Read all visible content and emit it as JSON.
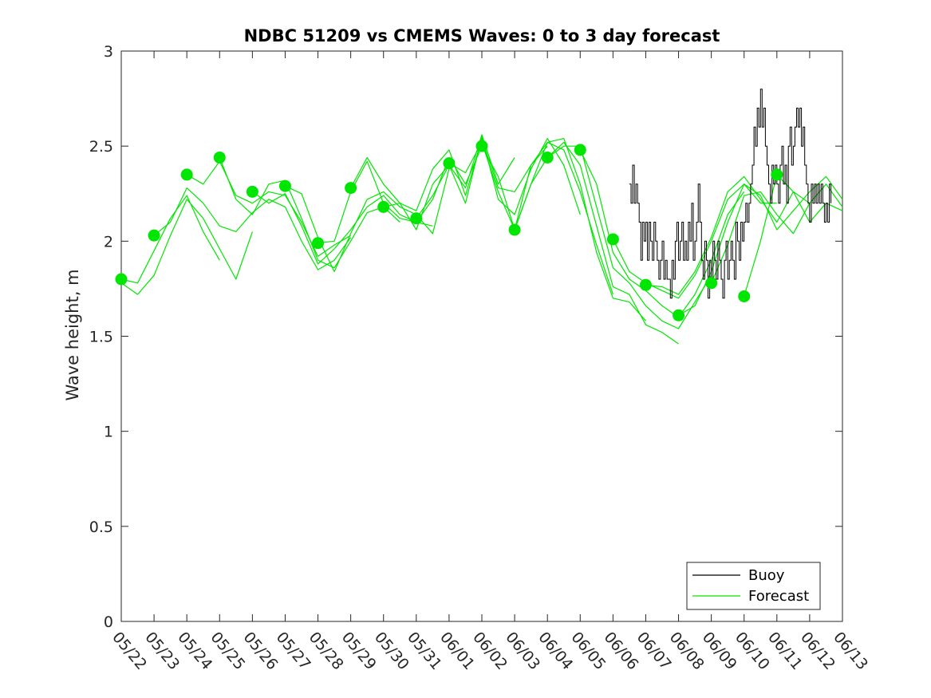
{
  "chart_data": {
    "type": "line",
    "title": "NDBC 51209 vs CMEMS Waves: 0 to 3 day forecast",
    "xlabel": "",
    "ylabel": "Wave height, m",
    "ylim": [
      0,
      3
    ],
    "yticks": [
      "0",
      "0.5",
      "1",
      "1.5",
      "2",
      "2.5",
      "3"
    ],
    "xlim": [
      "05/22",
      "06/13"
    ],
    "xticks": [
      "05/22",
      "05/23",
      "05/24",
      "05/25",
      "05/26",
      "05/27",
      "05/28",
      "05/29",
      "05/30",
      "05/31",
      "06/01",
      "06/02",
      "06/03",
      "06/04",
      "06/05",
      "06/06",
      "06/07",
      "06/08",
      "06/09",
      "06/10",
      "06/11",
      "06/12",
      "06/13"
    ],
    "grid": false,
    "legend": {
      "placement": "bottom-right",
      "entries": [
        "Buoy",
        "Forecast"
      ]
    },
    "colors": {
      "buoy": "#000000",
      "forecast": "#00e600",
      "axis": "#262626"
    },
    "series": [
      {
        "name": "Buoy",
        "style": "line",
        "x": [
          15.5,
          15.55,
          15.6,
          15.65,
          15.7,
          15.75,
          15.8,
          15.85,
          15.9,
          15.95,
          16.0,
          16.05,
          16.1,
          16.15,
          16.2,
          16.25,
          16.3,
          16.35,
          16.4,
          16.45,
          16.5,
          16.55,
          16.6,
          16.65,
          16.7,
          16.75,
          16.8,
          16.85,
          16.9,
          16.95,
          17.0,
          17.05,
          17.1,
          17.15,
          17.2,
          17.25,
          17.3,
          17.35,
          17.4,
          17.45,
          17.5,
          17.55,
          17.6,
          17.65,
          17.7,
          17.75,
          17.8,
          17.85,
          17.9,
          17.95,
          18.0,
          18.05,
          18.1,
          18.15,
          18.2,
          18.25,
          18.3,
          18.35,
          18.4,
          18.45,
          18.5,
          18.55,
          18.6,
          18.65,
          18.7,
          18.75,
          18.8,
          18.85,
          18.9,
          18.95,
          19.0,
          19.05,
          19.1,
          19.15,
          19.2,
          19.25,
          19.3,
          19.35,
          19.4,
          19.45,
          19.5,
          19.55,
          19.6,
          19.65,
          19.7,
          19.75,
          19.8,
          19.85,
          19.9,
          19.95,
          20.0,
          20.05,
          20.1,
          20.15,
          20.2,
          20.25,
          20.3,
          20.35,
          20.4,
          20.45,
          20.5,
          20.55,
          20.6,
          20.65,
          20.7,
          20.75,
          20.8,
          20.85,
          20.9,
          20.95,
          21.0,
          21.05,
          21.1,
          21.15,
          21.2,
          21.25,
          21.3,
          21.35,
          21.4,
          21.45,
          21.5,
          21.55,
          21.6,
          21.65
        ],
        "y": [
          2.3,
          2.2,
          2.4,
          2.2,
          2.3,
          2.2,
          2.1,
          1.9,
          2.1,
          2.0,
          2.1,
          1.9,
          2.1,
          2.0,
          1.9,
          2.1,
          2.0,
          1.9,
          1.8,
          1.9,
          2.0,
          1.8,
          1.9,
          1.8,
          1.8,
          1.7,
          1.9,
          1.8,
          2.0,
          2.1,
          1.9,
          2.0,
          2.1,
          1.9,
          2.0,
          1.9,
          2.1,
          2.0,
          2.2,
          1.9,
          2.0,
          2.1,
          2.3,
          2.1,
          1.9,
          1.8,
          2.0,
          1.9,
          1.7,
          1.9,
          1.8,
          2.0,
          1.9,
          1.8,
          2.0,
          1.9,
          1.8,
          1.7,
          1.9,
          2.0,
          1.8,
          1.9,
          2.0,
          1.9,
          1.8,
          2.1,
          2.0,
          1.9,
          2.1,
          2.0,
          2.1,
          2.2,
          2.1,
          2.2,
          2.3,
          2.4,
          2.6,
          2.5,
          2.7,
          2.6,
          2.8,
          2.6,
          2.7,
          2.5,
          2.4,
          2.3,
          2.2,
          2.4,
          2.3,
          2.4,
          2.3,
          2.2,
          2.4,
          2.5,
          2.3,
          2.4,
          2.2,
          2.5,
          2.6,
          2.4,
          2.5,
          2.6,
          2.7,
          2.6,
          2.7,
          2.5,
          2.6,
          2.4,
          2.3,
          2.2,
          2.1,
          2.3,
          2.2,
          2.3,
          2.2,
          2.3,
          2.2,
          2.3,
          2.2,
          2.1,
          2.2,
          2.1,
          2.3,
          2.2
        ]
      },
      {
        "name": "Forecast",
        "style": "lines",
        "runs": [
          {
            "x": [
              0,
              0.5,
              1,
              1.5,
              2,
              2.5,
              3
            ],
            "y": [
              1.8,
              1.78,
              1.95,
              2.12,
              2.24,
              2.05,
              1.9
            ]
          },
          {
            "x": [
              0,
              0.25,
              0.5,
              1,
              1.5,
              2,
              2.5,
              3,
              3.5,
              4
            ],
            "y": [
              1.78,
              1.75,
              1.72,
              1.82,
              2.03,
              2.22,
              2.12,
              1.96,
              1.8,
              2.05
            ]
          },
          {
            "x": [
              1,
              1.5,
              2,
              2.5,
              3,
              3.5,
              4,
              4.5,
              5,
              5.5,
              6,
              6.5,
              7
            ],
            "y": [
              2.03,
              2.1,
              2.28,
              2.2,
              2.08,
              2.05,
              2.15,
              2.22,
              2.18,
              2.0,
              1.85,
              1.9,
              2.02
            ]
          },
          {
            "x": [
              2,
              2.5,
              3,
              3.5,
              4,
              4.5,
              5,
              5.5,
              6,
              6.5,
              7
            ],
            "y": [
              2.35,
              2.3,
              2.42,
              2.24,
              2.2,
              2.26,
              2.24,
              2.1,
              1.92,
              1.98,
              2.03
            ]
          },
          {
            "x": [
              3,
              3.5,
              4,
              4.5,
              5,
              5.5,
              6,
              6.5,
              7,
              7.5,
              8,
              8.5
            ],
            "y": [
              2.44,
              2.22,
              2.14,
              2.3,
              2.32,
              2.12,
              1.9,
              1.86,
              2.0,
              2.15,
              2.18,
              2.1
            ]
          },
          {
            "x": [
              4,
              4.5,
              5,
              5.5,
              6,
              6.5,
              7,
              7.5,
              8,
              8.5,
              9,
              9.5
            ],
            "y": [
              2.26,
              2.2,
              2.25,
              2.08,
              1.88,
              1.96,
              2.06,
              2.18,
              2.24,
              2.14,
              2.1,
              2.08
            ]
          },
          {
            "x": [
              5,
              5.5,
              6,
              6.5,
              7,
              7.5,
              8,
              8.5,
              9,
              9.5,
              10
            ],
            "y": [
              2.29,
              2.25,
              2.02,
              1.84,
              2.04,
              2.22,
              2.26,
              2.18,
              2.14,
              2.04,
              2.38
            ]
          },
          {
            "x": [
              6,
              6.5,
              7,
              7.5,
              8,
              8.5,
              9,
              9.5,
              10,
              10.5,
              11
            ],
            "y": [
              1.99,
              2.0,
              2.26,
              2.42,
              2.2,
              2.12,
              2.1,
              2.22,
              2.44,
              2.3,
              2.5
            ]
          },
          {
            "x": [
              7,
              7.5,
              8,
              8.5,
              9,
              9.5,
              10,
              10.5,
              11,
              11.5,
              12
            ],
            "y": [
              2.28,
              2.44,
              2.3,
              2.2,
              2.06,
              2.3,
              2.4,
              2.28,
              2.56,
              2.3,
              2.44
            ]
          },
          {
            "x": [
              8,
              8.5,
              9,
              9.5,
              10,
              10.5,
              11,
              11.5,
              12,
              12.5,
              13
            ],
            "y": [
              2.18,
              2.2,
              2.16,
              2.38,
              2.48,
              2.24,
              2.54,
              2.28,
              2.26,
              2.4,
              2.5
            ]
          },
          {
            "x": [
              9,
              9.5,
              10,
              10.5,
              11,
              11.5,
              12,
              12.5,
              13,
              13.5,
              14
            ],
            "y": [
              2.12,
              2.24,
              2.4,
              2.2,
              2.55,
              2.22,
              2.14,
              2.38,
              2.54,
              2.4,
              2.14
            ]
          },
          {
            "x": [
              10,
              10.5,
              11,
              11.5,
              12,
              12.5,
              13,
              13.5,
              14,
              14.5,
              15
            ],
            "y": [
              2.41,
              2.36,
              2.52,
              2.26,
              2.06,
              2.3,
              2.52,
              2.48,
              2.26,
              1.98,
              1.72
            ]
          },
          {
            "x": [
              11,
              11.5,
              12,
              12.5,
              13,
              13.5,
              14,
              14.5,
              15,
              15.5,
              16
            ],
            "y": [
              2.5,
              2.34,
              2.06,
              2.4,
              2.52,
              2.54,
              2.3,
              1.94,
              1.7,
              1.68,
              1.58
            ]
          },
          {
            "x": [
              12,
              12.5,
              13,
              13.5,
              14,
              14.5,
              15,
              15.5,
              16,
              16.5,
              17
            ],
            "y": [
              2.06,
              2.3,
              2.44,
              2.52,
              2.4,
              2.08,
              1.76,
              1.72,
              1.56,
              1.52,
              1.46
            ]
          },
          {
            "x": [
              13,
              13.5,
              14,
              14.5,
              15,
              15.5,
              16,
              16.5,
              17,
              17.5,
              18
            ],
            "y": [
              2.44,
              2.5,
              2.5,
              2.18,
              1.86,
              1.78,
              1.66,
              1.58,
              1.54,
              1.68,
              1.82
            ]
          },
          {
            "x": [
              14,
              14.5,
              15,
              15.5,
              16,
              16.5,
              17,
              17.5,
              18,
              18.5,
              19
            ],
            "y": [
              2.48,
              2.3,
              1.94,
              1.8,
              1.74,
              1.66,
              1.6,
              1.72,
              1.9,
              2.14,
              2.26
            ]
          },
          {
            "x": [
              15,
              15.5,
              16,
              16.5,
              17,
              17.5,
              18,
              18.5,
              19,
              19.5,
              20
            ],
            "y": [
              2.01,
              1.84,
              1.78,
              1.74,
              1.7,
              1.82,
              2.0,
              2.22,
              2.3,
              2.2,
              2.2
            ]
          },
          {
            "x": [
              16,
              16.5,
              17,
              17.5,
              18,
              18.5,
              19,
              19.5,
              20,
              20.5,
              21
            ],
            "y": [
              1.77,
              1.76,
              1.72,
              1.84,
              2.02,
              2.26,
              2.34,
              2.22,
              2.1,
              2.26,
              2.2
            ]
          },
          {
            "x": [
              17,
              17.5,
              18,
              18.5,
              19,
              19.5,
              20,
              20.5,
              21,
              21.5,
              22
            ],
            "y": [
              1.61,
              1.66,
              1.84,
              2.1,
              2.3,
              2.24,
              2.06,
              2.16,
              2.26,
              2.34,
              2.22
            ]
          },
          {
            "x": [
              18,
              18.5,
              19,
              19.5,
              20,
              20.5,
              21,
              21.5,
              22
            ],
            "y": [
              1.78,
              1.98,
              2.24,
              2.26,
              2.14,
              2.04,
              2.2,
              2.3,
              2.18
            ]
          },
          {
            "x": [
              19,
              19.5,
              20,
              20.5,
              21,
              21.5,
              22
            ],
            "y": [
              1.71,
              2.0,
              2.35,
              2.26,
              2.1,
              2.2,
              2.16
            ]
          }
        ]
      },
      {
        "name": "Forecast markers",
        "style": "markers",
        "x": [
          0,
          1,
          2,
          3,
          4,
          5,
          6,
          7,
          8,
          9,
          10,
          11,
          12,
          13,
          14,
          15,
          16,
          17,
          18,
          19,
          20
        ],
        "y": [
          1.8,
          2.03,
          2.35,
          2.44,
          2.26,
          2.29,
          1.99,
          2.28,
          2.18,
          2.12,
          2.41,
          2.5,
          2.06,
          2.44,
          2.48,
          2.01,
          1.77,
          1.61,
          1.78,
          1.71,
          2.35
        ]
      }
    ]
  }
}
